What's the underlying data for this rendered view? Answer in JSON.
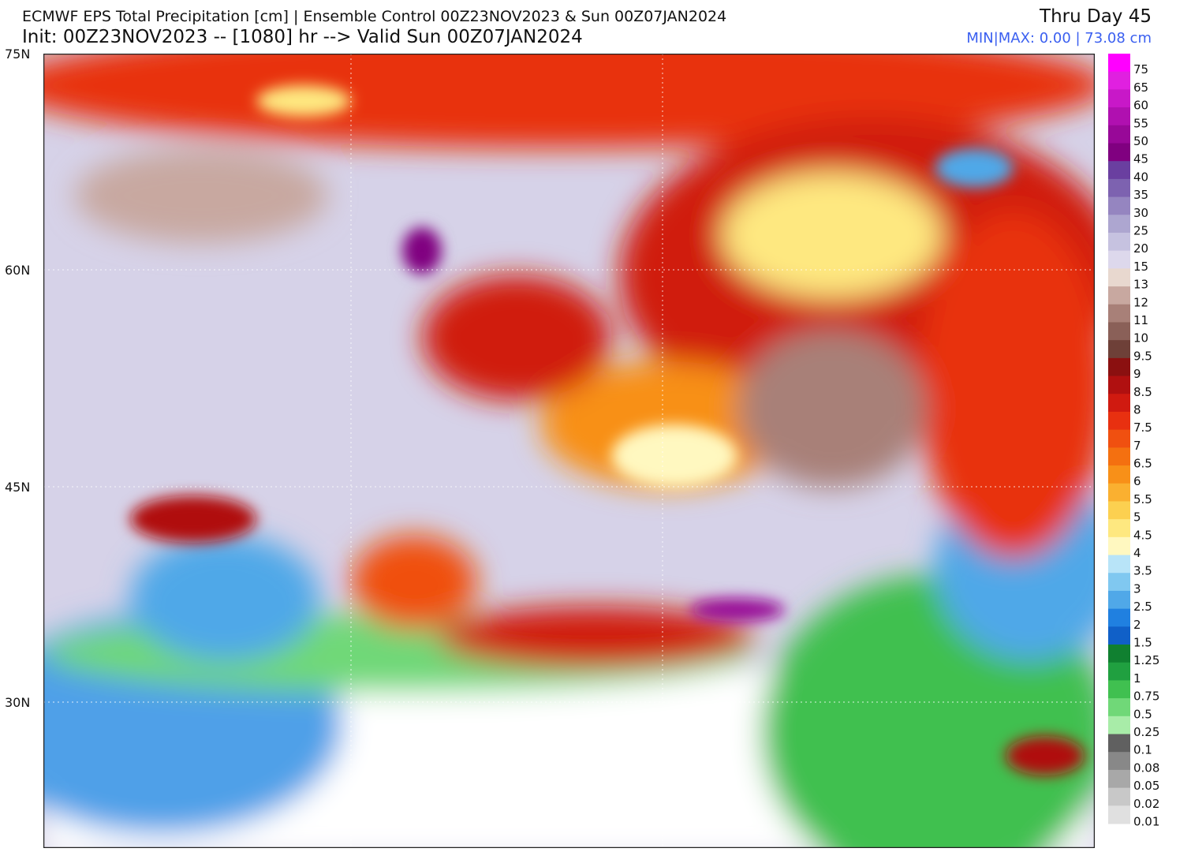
{
  "header": {
    "title": "ECMWF EPS Total Precipitation [cm] | Ensemble Control 00Z23NOV2023 & Sun 00Z07JAN2024",
    "subtitle": "Init: 00Z23NOV2023 -- [1080] hr --> Valid Sun 00Z07JAN2024",
    "period": "Thru Day 45",
    "minmax": "MIN|MAX: 0.00 | 73.08 cm"
  },
  "latitude_labels": [
    "75N",
    "60N",
    "45N",
    "30N"
  ],
  "colorbar": {
    "labels": [
      "75",
      "65",
      "60",
      "55",
      "50",
      "45",
      "40",
      "35",
      "30",
      "25",
      "20",
      "15",
      "13",
      "12",
      "11",
      "10",
      "9.5",
      "9",
      "8.5",
      "8",
      "7.5",
      "7",
      "6.5",
      "6",
      "5.5",
      "5",
      "4.5",
      "4",
      "3.5",
      "3",
      "2.5",
      "2",
      "1.5",
      "1.25",
      "1",
      "0.75",
      "0.5",
      "0.25",
      "0.1",
      "0.08",
      "0.05",
      "0.02",
      "0.01"
    ],
    "colors": [
      "#ff00ff",
      "#e020e0",
      "#c818c8",
      "#b010b0",
      "#980898",
      "#800080",
      "#6a3fa0",
      "#7d62b0",
      "#9585c0",
      "#ada6d0",
      "#c6c2e0",
      "#ddd8ec",
      "#e8d8cf",
      "#c8a8a0",
      "#a88078",
      "#8a6058",
      "#6e4038",
      "#8b1010",
      "#b01010",
      "#d01a10",
      "#e83010",
      "#f05010",
      "#f47010",
      "#f89018",
      "#fab030",
      "#fcd050",
      "#fee880",
      "#fff8c0",
      "#b8e4f8",
      "#80c8f0",
      "#50a8e8",
      "#2080e0",
      "#1060c8",
      "#108030",
      "#20a040",
      "#40c050",
      "#70d878",
      "#a8eca8",
      "#606060",
      "#888888",
      "#a8a8a8",
      "#c8c8c8",
      "#e0e0e0"
    ]
  }
}
